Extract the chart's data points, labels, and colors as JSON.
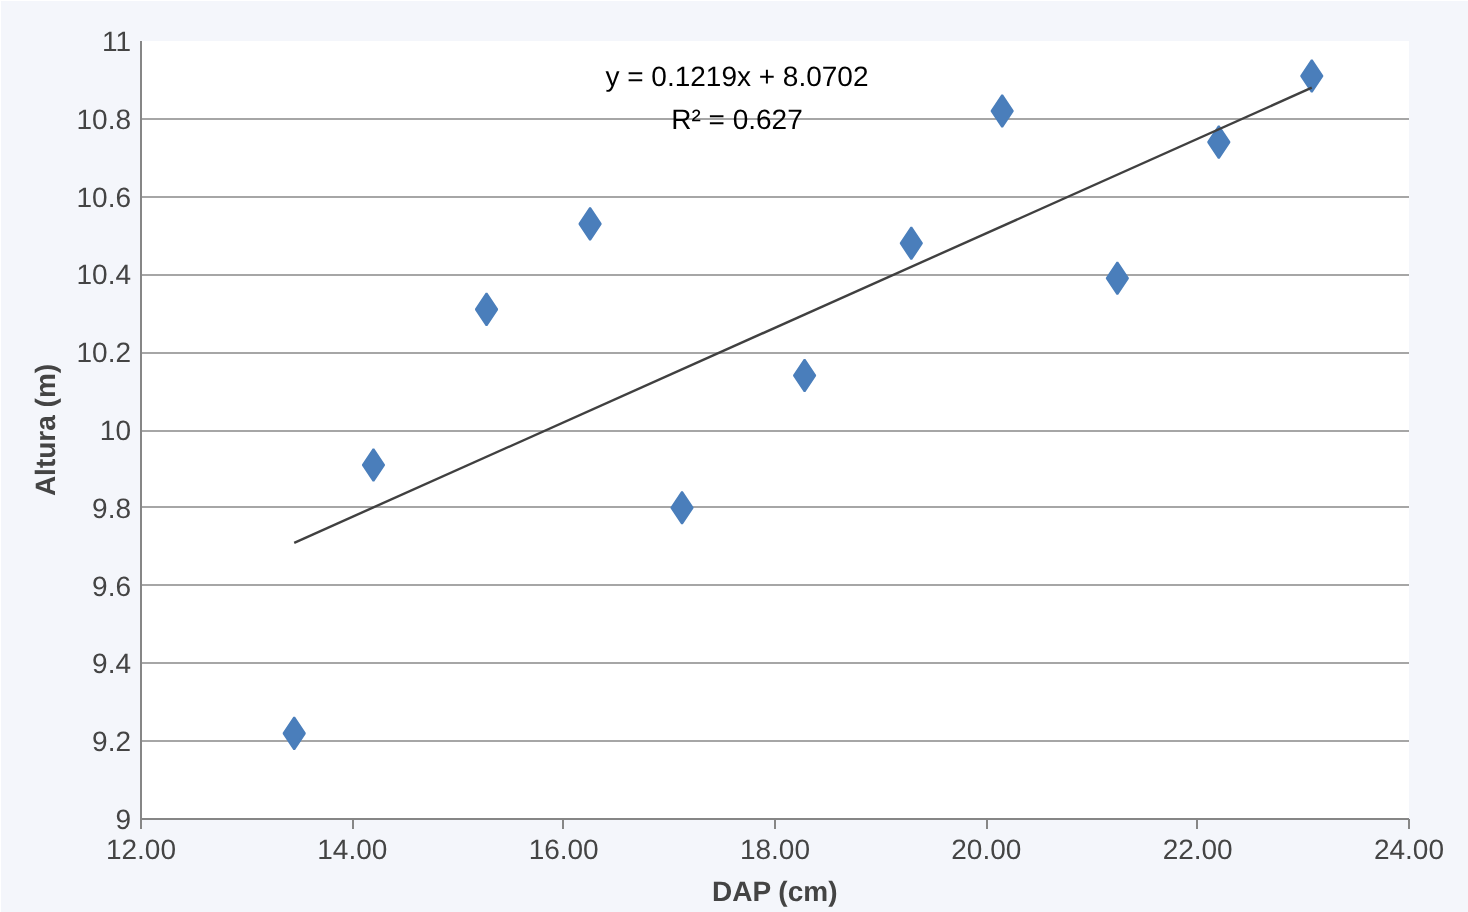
{
  "chart_data": {
    "type": "scatter",
    "xlabel": "DAP (cm)",
    "ylabel": "Altura (m)",
    "xlim": [
      12,
      24
    ],
    "ylim": [
      9,
      11
    ],
    "xticks": [
      {
        "value": 12,
        "label": "12.00"
      },
      {
        "value": 14,
        "label": "14.00"
      },
      {
        "value": 16,
        "label": "16.00"
      },
      {
        "value": 18,
        "label": "18.00"
      },
      {
        "value": 20,
        "label": "20.00"
      },
      {
        "value": 22,
        "label": "22.00"
      },
      {
        "value": 24,
        "label": "24.00"
      }
    ],
    "yticks": [
      9,
      9.2,
      9.4,
      9.6,
      9.8,
      10,
      10.2,
      10.4,
      10.6,
      10.8,
      11
    ],
    "grid": "y",
    "marker": "diamond",
    "annotations": [
      "y = 0.1219x + 8.0702",
      "R² = 0.627"
    ],
    "series": [
      {
        "color": "#4a7ebb",
        "x": [
          13.45,
          14.2,
          15.27,
          16.25,
          17.12,
          18.28,
          19.29,
          20.15,
          21.24,
          22.2,
          23.08
        ],
        "values": [
          9.22,
          9.91,
          10.31,
          10.53,
          9.8,
          10.14,
          10.48,
          10.82,
          10.39,
          10.74,
          10.91
        ]
      },
      {
        "type": "line",
        "marker": "none",
        "color": "#404040",
        "x": [
          13.45,
          23.08
        ],
        "values": [
          9.71,
          10.88
        ]
      }
    ]
  }
}
